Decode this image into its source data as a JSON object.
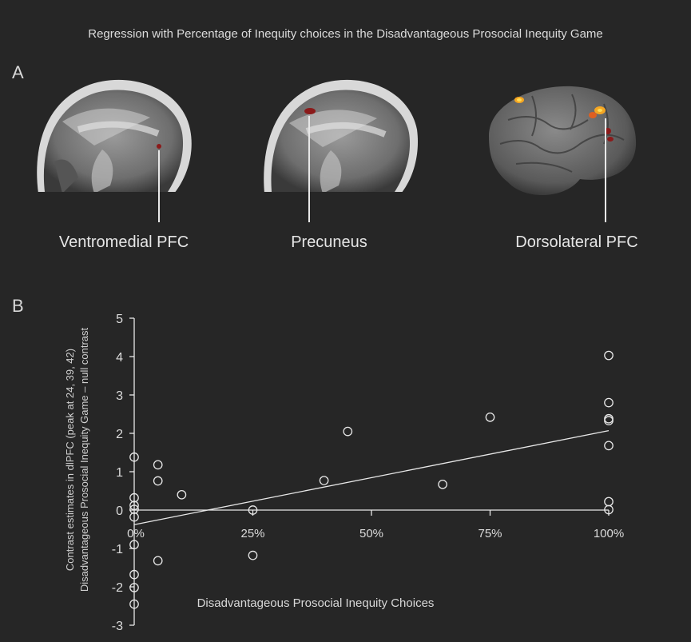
{
  "figure": {
    "title": "Regression with Percentage of Inequity choices in the Disadvantageous Prosocial Inequity Game",
    "panel_a_letter": "A",
    "panel_b_letter": "B"
  },
  "regions": {
    "vmpfc": "Ventromedial PFC",
    "precuneus": "Precuneus",
    "dlpfc": "Dorsolateral PFC"
  },
  "colors": {
    "background": "#262626",
    "foreground": "#e8e8e8",
    "activation": "#8b1a1a",
    "activation_hot": "#f5a623"
  },
  "chart_data": {
    "type": "scatter",
    "xlabel": "Disadvantageous Prosocial Inequity Choices",
    "ylabel_line1": "Contrast estimates in dlPFC (peak at 24, 39, 42)",
    "ylabel_line2": "Disadvantageous Prosocial Inequity Game – null contrast",
    "xlim": [
      0,
      1
    ],
    "ylim": [
      -3,
      5
    ],
    "x_ticks": [
      0.25,
      0.5,
      0.75,
      1.0
    ],
    "x_tick_labels": [
      "25%",
      "50%",
      "75%",
      "100%"
    ],
    "x_origin_label": "0%",
    "y_ticks": [
      5,
      4,
      3,
      2,
      1,
      0,
      -1,
      -2,
      -3
    ],
    "y_tick_labels": [
      "5",
      "4",
      "3",
      "2",
      "1",
      "0",
      "-1",
      "-2",
      "-3"
    ],
    "points": [
      {
        "x": 0,
        "y": 1.38
      },
      {
        "x": 0,
        "y": 0.32
      },
      {
        "x": 0,
        "y": 0.12
      },
      {
        "x": 0,
        "y": 0.02
      },
      {
        "x": 0,
        "y": -0.18
      },
      {
        "x": 0,
        "y": -0.9
      },
      {
        "x": 0,
        "y": -1.68
      },
      {
        "x": 0,
        "y": -2.02
      },
      {
        "x": 0,
        "y": -2.45
      },
      {
        "x": 0.05,
        "y": 1.18
      },
      {
        "x": 0.05,
        "y": 0.76
      },
      {
        "x": 0.05,
        "y": -1.32
      },
      {
        "x": 0.1,
        "y": 0.4
      },
      {
        "x": 0.25,
        "y": 0.0
      },
      {
        "x": 0.25,
        "y": -1.18
      },
      {
        "x": 0.4,
        "y": 0.77
      },
      {
        "x": 0.45,
        "y": 2.05
      },
      {
        "x": 0.65,
        "y": 0.67
      },
      {
        "x": 0.75,
        "y": 2.42
      },
      {
        "x": 1.0,
        "y": 4.03
      },
      {
        "x": 1.0,
        "y": 2.8
      },
      {
        "x": 1.0,
        "y": 2.38
      },
      {
        "x": 1.0,
        "y": 2.33
      },
      {
        "x": 1.0,
        "y": 1.68
      },
      {
        "x": 1.0,
        "y": 0.22
      },
      {
        "x": 1.0,
        "y": 0.01
      }
    ],
    "regression_line": {
      "x": [
        0,
        1
      ],
      "y": [
        -0.38,
        2.07
      ]
    }
  }
}
